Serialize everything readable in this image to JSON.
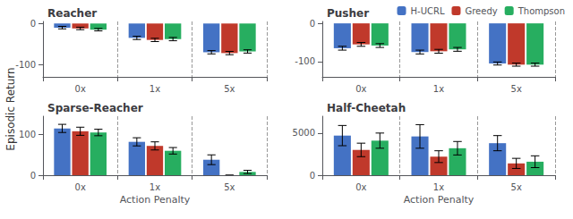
{
  "ylabel": "Episodic Return",
  "chart_data": [
    {
      "type": "bar",
      "title": "Reacher",
      "categories": [
        "0x",
        "1x",
        "5x"
      ],
      "series": [
        {
          "name": "H-UCRL",
          "color": "#4472c4",
          "values": [
            -10,
            -35,
            -70
          ],
          "errors": [
            3,
            4,
            4
          ]
        },
        {
          "name": "Greedy",
          "color": "#c0392b",
          "values": [
            -12,
            -40,
            -72
          ],
          "errors": [
            3,
            4,
            4
          ]
        },
        {
          "name": "Thompson",
          "color": "#27ae60",
          "values": [
            -15,
            -38,
            -68
          ],
          "errors": [
            3,
            4,
            4
          ]
        }
      ],
      "ylim": [
        -130,
        5
      ],
      "yticks": [
        -100,
        0
      ],
      "grid": false
    },
    {
      "type": "bar",
      "title": "Pusher",
      "categories": [
        "0x",
        "1x",
        "5x"
      ],
      "series": [
        {
          "name": "H-UCRL",
          "color": "#4472c4",
          "values": [
            -65,
            -75,
            -105
          ],
          "errors": [
            5,
            5,
            4
          ]
        },
        {
          "name": "Greedy",
          "color": "#c0392b",
          "values": [
            -55,
            -73,
            -108
          ],
          "errors": [
            5,
            5,
            4
          ]
        },
        {
          "name": "Thompson",
          "color": "#27ae60",
          "values": [
            -58,
            -68,
            -108
          ],
          "errors": [
            5,
            5,
            4
          ]
        }
      ],
      "ylim": [
        -140,
        5
      ],
      "yticks": [
        -100,
        0
      ],
      "grid": false,
      "legend": "upper right"
    },
    {
      "type": "bar",
      "title": "Sparse-Reacher",
      "categories": [
        "0x",
        "1x",
        "5x"
      ],
      "xlabel": "Action Penalty",
      "series": [
        {
          "name": "H-UCRL",
          "color": "#4472c4",
          "values": [
            115,
            82,
            38
          ],
          "errors": [
            10,
            10,
            12
          ]
        },
        {
          "name": "Greedy",
          "color": "#c0392b",
          "values": [
            108,
            72,
            0
          ],
          "errors": [
            10,
            10,
            0
          ]
        },
        {
          "name": "Thompson",
          "color": "#27ae60",
          "values": [
            105,
            60,
            8
          ],
          "errors": [
            8,
            8,
            4
          ]
        }
      ],
      "ylim": [
        0,
        145
      ],
      "yticks": [
        0,
        100
      ],
      "grid": false
    },
    {
      "type": "bar",
      "title": "Half-Cheetah",
      "categories": [
        "0x",
        "1x",
        "5x"
      ],
      "xlabel": "Action Penalty",
      "series": [
        {
          "name": "H-UCRL",
          "color": "#4472c4",
          "values": [
            4700,
            4600,
            3800
          ],
          "errors": [
            1200,
            1400,
            900
          ]
        },
        {
          "name": "Greedy",
          "color": "#c0392b",
          "values": [
            3000,
            2200,
            1400
          ],
          "errors": [
            800,
            700,
            600
          ]
        },
        {
          "name": "Thompson",
          "color": "#27ae60",
          "values": [
            4100,
            3200,
            1600
          ],
          "errors": [
            900,
            800,
            700
          ]
        }
      ],
      "ylim": [
        0,
        7000
      ],
      "yticks": [
        0,
        5000
      ],
      "grid": false
    }
  ]
}
